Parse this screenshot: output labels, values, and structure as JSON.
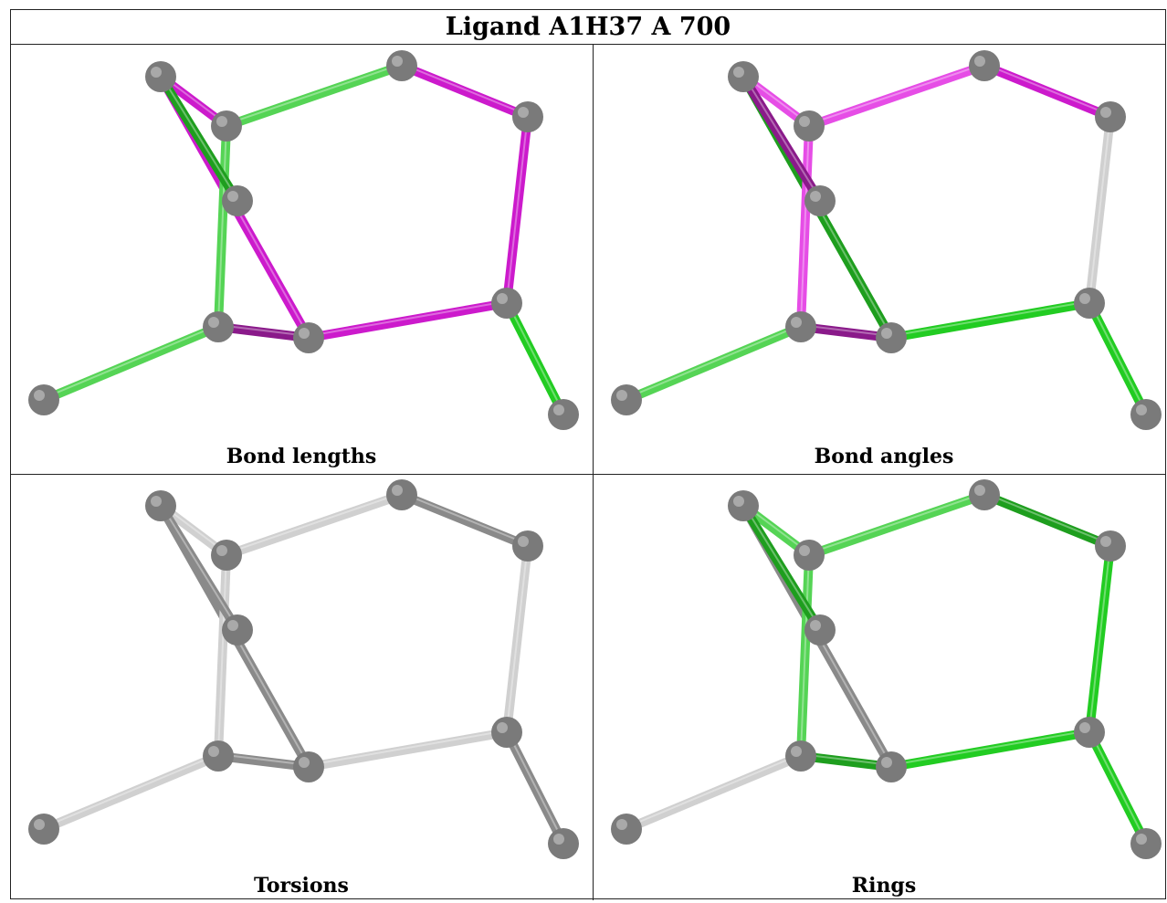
{
  "title": "Ligand A1H37 A 700",
  "colors": {
    "magenta": "#cc1acc",
    "magenta_dark": "#8a1a8a",
    "magenta_light": "#e64de6",
    "green": "#22cc22",
    "green_light": "#55d455",
    "green_dark": "#1e9e1e",
    "grey_bond": "#8a8a8a",
    "grey_light_bond": "#d0d0d0",
    "atom": "#7a7a7a"
  },
  "panels": [
    {
      "caption": "Bond lengths",
      "bond_colors": [
        "green_light",
        "magenta",
        "magenta",
        "magenta",
        "magenta",
        "green",
        "green_light",
        "magenta",
        "magenta_dark",
        "green_light",
        "green_dark"
      ]
    },
    {
      "caption": "Bond angles",
      "bond_colors": [
        "magenta_light",
        "magenta",
        "grey_light_bond",
        "green_dark",
        "green",
        "green",
        "magenta_light",
        "magenta_light",
        "magenta_dark",
        "green_light",
        "magenta_dark"
      ]
    },
    {
      "caption": "Torsions",
      "bond_colors": [
        "grey_light_bond",
        "grey_bond",
        "grey_light_bond",
        "grey_bond",
        "grey_light_bond",
        "grey_bond",
        "grey_light_bond",
        "grey_light_bond",
        "grey_bond",
        "grey_light_bond",
        "grey_bond"
      ]
    },
    {
      "caption": "Rings",
      "bond_colors": [
        "green_light",
        "green_dark",
        "green",
        "grey_bond",
        "green",
        "green",
        "green_light",
        "green_light",
        "green_dark",
        "grey_light_bond",
        "green_dark"
      ]
    }
  ]
}
